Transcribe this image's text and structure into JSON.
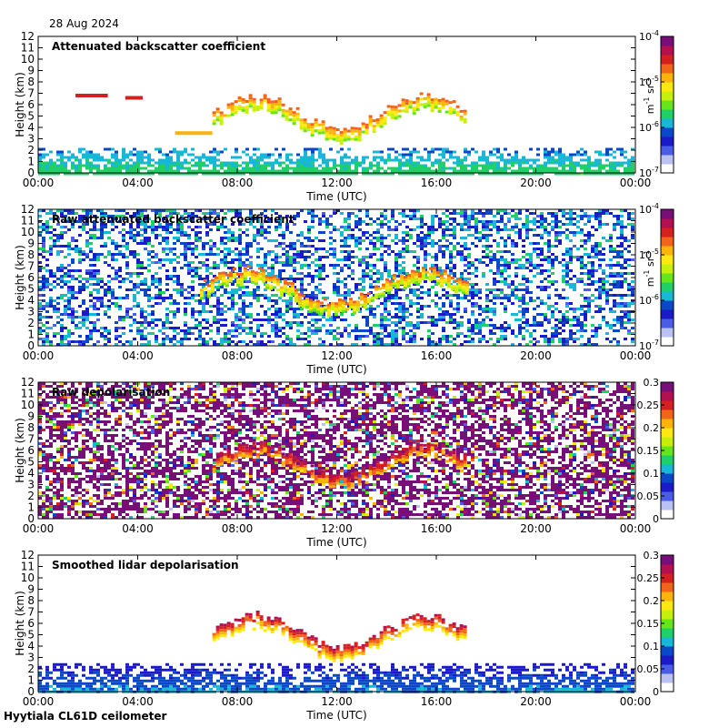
{
  "date": "28 Aug 2024",
  "site_label": "Hyytiala CL61D ceilometer",
  "colors": {
    "colormap": [
      "#ffffff",
      "#b9c2f2",
      "#4b5de6",
      "#1a1ac8",
      "#0a48c8",
      "#17b7d5",
      "#1fcf68",
      "#66e61a",
      "#c7ef0c",
      "#fde910",
      "#fcb40a",
      "#f2641a",
      "#d61f1f",
      "#b41050",
      "#780e78"
    ],
    "background": "#ffffff"
  },
  "chart_data": [
    {
      "type": "heatmap",
      "title": "Attenuated backscatter coefficient",
      "xlabel": "Time (UTC)",
      "ylabel": "Height (km)",
      "x_ticks": [
        "00:00",
        "04:00",
        "08:00",
        "12:00",
        "16:00",
        "20:00",
        "00:00"
      ],
      "y_ticks": [
        "0",
        "1",
        "2",
        "3",
        "4",
        "5",
        "6",
        "7",
        "8",
        "9",
        "10",
        "11",
        "12"
      ],
      "ylim": [
        0,
        12
      ],
      "colorbar": {
        "scale": "log",
        "ticks": [
          "10",
          "10",
          "10",
          "10"
        ],
        "exponents": [
          "-7",
          "-6",
          "-5",
          "-4"
        ],
        "label_base": "m",
        "label_exp1": "-1",
        "label_mid": " sr",
        "label_exp2": "-1"
      },
      "features": [
        {
          "kind": "boundary_layer",
          "t_start": 0,
          "t_end": 24,
          "h_top": 2.2,
          "level": 0.3
        },
        {
          "kind": "cloud",
          "t_start": 1.5,
          "t_end": 2.8,
          "h": 6.8,
          "level": 0.8
        },
        {
          "kind": "cloud",
          "t_start": 3.5,
          "t_end": 4.2,
          "h": 6.6,
          "level": 0.8
        },
        {
          "kind": "cloud",
          "t_start": 5.5,
          "t_end": 7.0,
          "h": 3.5,
          "level": 0.7
        },
        {
          "kind": "cloud_layer",
          "t_start": 7.0,
          "t_end": 17.2,
          "h_low": 3.5,
          "h_high": 7.0,
          "level": 0.75
        }
      ]
    },
    {
      "type": "heatmap",
      "title": "Raw attenuated backscatter coefficient",
      "xlabel": "Time (UTC)",
      "ylabel": "Height (km)",
      "x_ticks": [
        "00:00",
        "04:00",
        "08:00",
        "12:00",
        "16:00",
        "20:00",
        "00:00"
      ],
      "y_ticks": [
        "0",
        "1",
        "2",
        "3",
        "4",
        "5",
        "6",
        "7",
        "8",
        "9",
        "10",
        "11",
        "12"
      ],
      "ylim": [
        0,
        12
      ],
      "colorbar": {
        "scale": "log",
        "ticks": [
          "10",
          "10",
          "10",
          "10"
        ],
        "exponents": [
          "-7",
          "-6",
          "-5",
          "-4"
        ],
        "label_base": "m",
        "label_exp1": "-1",
        "label_mid": " sr",
        "label_exp2": "-1"
      },
      "features": [
        {
          "kind": "noise",
          "level": 0.28
        },
        {
          "kind": "cloud_layer",
          "t_start": 6.5,
          "t_end": 17.2,
          "h_low": 3.5,
          "h_high": 7.0,
          "level": 0.75
        }
      ]
    },
    {
      "type": "heatmap",
      "title": "Raw depolarisation",
      "xlabel": "Time (UTC)",
      "ylabel": "Height (km)",
      "x_ticks": [
        "00:00",
        "04:00",
        "08:00",
        "12:00",
        "16:00",
        "20:00",
        "00:00"
      ],
      "y_ticks": [
        "0",
        "1",
        "2",
        "3",
        "4",
        "5",
        "6",
        "7",
        "8",
        "9",
        "10",
        "11",
        "12"
      ],
      "ylim": [
        0,
        12
      ],
      "colorbar": {
        "scale": "linear",
        "ticks": [
          "0",
          "0.05",
          "0.1",
          "0.15",
          "0.2",
          "0.25",
          "0.3"
        ],
        "range": [
          0,
          0.3
        ]
      },
      "features": [
        {
          "kind": "noise_depol",
          "level": 0.95
        },
        {
          "kind": "cloud_layer",
          "t_start": 7.0,
          "t_end": 17.2,
          "h_low": 3.5,
          "h_high": 7.0,
          "level": 0.9
        }
      ]
    },
    {
      "type": "heatmap",
      "title": "Smoothed lidar depolarisation",
      "xlabel": "Time (UTC)",
      "ylabel": "Height (km)",
      "x_ticks": [
        "00:00",
        "04:00",
        "08:00",
        "12:00",
        "16:00",
        "20:00",
        "00:00"
      ],
      "y_ticks": [
        "0",
        "1",
        "2",
        "3",
        "4",
        "5",
        "6",
        "7",
        "8",
        "9",
        "10",
        "11",
        "12"
      ],
      "ylim": [
        0,
        12
      ],
      "colorbar": {
        "scale": "linear",
        "ticks": [
          "0",
          "0.05",
          "0.1",
          "0.15",
          "0.2",
          "0.25",
          "0.3"
        ],
        "range": [
          0,
          0.3
        ]
      },
      "features": [
        {
          "kind": "boundary_layer",
          "t_start": 0,
          "t_end": 24,
          "h_top": 2.5,
          "level": 0.2
        },
        {
          "kind": "cloud_layer",
          "t_start": 7.0,
          "t_end": 17.2,
          "h_low": 3.5,
          "h_high": 7.0,
          "level": 0.85
        }
      ]
    }
  ]
}
